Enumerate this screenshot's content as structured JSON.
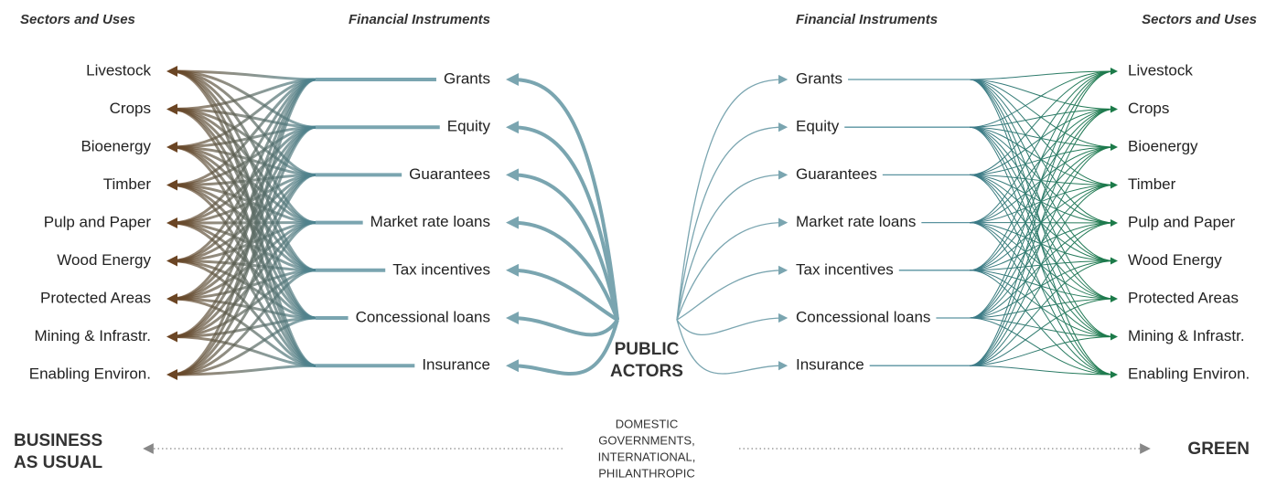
{
  "left": {
    "sectors_header": "Sectors and Uses",
    "instruments_header": "Financial Instruments",
    "sectors": [
      "Livestock",
      "Crops",
      "Bioenergy",
      "Timber",
      "Pulp and Paper",
      "Wood Energy",
      "Protected Areas",
      "Mining & Infrastr.",
      "Enabling Environ."
    ],
    "instruments": [
      "Grants",
      "Equity",
      "Guarantees",
      "Market rate loans",
      "Tax incentives",
      "Concessional loans",
      "Insurance"
    ],
    "outcome": [
      "BUSINESS",
      "AS USUAL"
    ]
  },
  "right": {
    "sectors_header": "Sectors and Uses",
    "instruments_header": "Financial Instruments",
    "sectors": [
      "Livestock",
      "Crops",
      "Bioenergy",
      "Timber",
      "Pulp and Paper",
      "Wood Energy",
      "Protected Areas",
      "Mining & Infrastr.",
      "Enabling Environ."
    ],
    "instruments": [
      "Grants",
      "Equity",
      "Guarantees",
      "Market rate loans",
      "Tax incentives",
      "Concessional loans",
      "Insurance"
    ],
    "outcome": [
      "GREEN"
    ]
  },
  "center": {
    "title": [
      "PUBLIC",
      "ACTORS"
    ],
    "subtitle": [
      "DOMESTIC",
      "GOVERNMENTS,",
      "INTERNATIONAL,",
      "PHILANTHROPIC"
    ]
  }
}
